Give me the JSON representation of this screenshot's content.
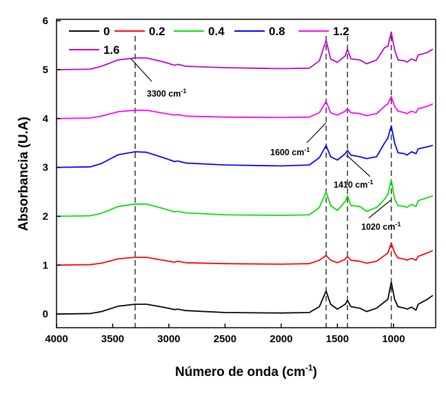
{
  "chart_data": {
    "type": "line",
    "title": "",
    "xlabel": "Número de onda (cm",
    "xlabel_sup": "-1",
    "xlabel_end": ")",
    "ylabel": "Absorbancia (U.A)",
    "xlim": [
      4000,
      625
    ],
    "ylim": [
      -0.28,
      6.03
    ],
    "x_reversed": true,
    "xticks": [
      4000,
      3500,
      3000,
      2500,
      2000,
      1500,
      1000
    ],
    "yticks": [
      0,
      1,
      2,
      3,
      4,
      5,
      6
    ],
    "grid": false,
    "legend_position": "top-left",
    "x": [
      4000,
      3700,
      3600,
      3450,
      3300,
      3200,
      3050,
      2950,
      2920,
      2850,
      2500,
      2000,
      1750,
      1660,
      1600,
      1560,
      1500,
      1430,
      1410,
      1380,
      1300,
      1240,
      1150,
      1080,
      1050,
      1020,
      990,
      960,
      900,
      880,
      840,
      800,
      780,
      700,
      650
    ],
    "series": [
      {
        "name": "0",
        "color": "#000000",
        "values": [
          0,
          0.01,
          0.05,
          0.16,
          0.2,
          0.2,
          0.14,
          0.09,
          0.1,
          0.07,
          0.03,
          0.02,
          0.03,
          0.15,
          0.47,
          0.2,
          0.1,
          0.2,
          0.28,
          0.15,
          0.12,
          0.05,
          0.12,
          0.25,
          0.3,
          0.65,
          0.3,
          0.15,
          0.12,
          0.1,
          0.14,
          0.08,
          0.2,
          0.3,
          0.38
        ]
      },
      {
        "name": "0.2",
        "color": "#ff0000",
        "values": [
          1,
          1.01,
          1.04,
          1.13,
          1.16,
          1.16,
          1.1,
          1.06,
          1.08,
          1.05,
          1.03,
          1.02,
          1.03,
          1.1,
          1.2,
          1.1,
          1.05,
          1.12,
          1.18,
          1.1,
          1.08,
          1.04,
          1.08,
          1.2,
          1.25,
          1.45,
          1.25,
          1.15,
          1.12,
          1.1,
          1.14,
          1.1,
          1.18,
          1.25,
          1.3
        ]
      },
      {
        "name": "0.4",
        "color": "#00e000",
        "values": [
          2,
          2.01,
          2.06,
          2.2,
          2.25,
          2.25,
          2.16,
          2.09,
          2.1,
          2.07,
          2.03,
          2.02,
          2.03,
          2.18,
          2.5,
          2.22,
          2.12,
          2.3,
          2.42,
          2.22,
          2.2,
          2.1,
          2.18,
          2.35,
          2.45,
          2.75,
          2.35,
          2.22,
          2.2,
          2.18,
          2.24,
          2.2,
          2.32,
          2.38,
          2.42
        ]
      },
      {
        "name": "0.8",
        "color": "#0000ff",
        "values": [
          3,
          3.01,
          3.08,
          3.26,
          3.32,
          3.31,
          3.2,
          3.12,
          3.13,
          3.09,
          3.05,
          3.03,
          3.05,
          3.2,
          3.45,
          3.22,
          3.15,
          3.28,
          3.35,
          3.25,
          3.22,
          3.18,
          3.22,
          3.5,
          3.6,
          3.85,
          3.5,
          3.3,
          3.28,
          3.25,
          3.32,
          3.28,
          3.38,
          3.42,
          3.45
        ]
      },
      {
        "name": "1.2",
        "color": "#ff00ff",
        "values": [
          4,
          4.01,
          4.05,
          4.14,
          4.17,
          4.17,
          4.11,
          4.07,
          4.08,
          4.05,
          4.03,
          4.02,
          4.03,
          4.12,
          4.35,
          4.12,
          4.07,
          4.15,
          4.2,
          4.12,
          4.1,
          4.06,
          4.1,
          4.25,
          4.3,
          4.45,
          4.25,
          4.15,
          4.12,
          4.1,
          4.15,
          4.12,
          4.2,
          4.25,
          4.3
        ]
      },
      {
        "name": "1.6",
        "color": "#c000d0",
        "values": [
          5,
          5.01,
          5.07,
          5.2,
          5.24,
          5.24,
          5.16,
          5.09,
          5.11,
          5.07,
          5.04,
          5.02,
          5.03,
          5.18,
          5.6,
          5.22,
          5.15,
          5.28,
          5.42,
          5.22,
          5.2,
          5.12,
          5.2,
          5.45,
          5.48,
          5.77,
          5.4,
          5.2,
          5.18,
          5.15,
          5.22,
          5.18,
          5.3,
          5.35,
          5.42
        ]
      }
    ],
    "reference_lines": [
      3300,
      1600,
      1410,
      1020
    ],
    "annotations": [
      {
        "text": "3300 cm",
        "sup": "-1",
        "x": 3300
      },
      {
        "text": "1600 cm",
        "sup": "-1",
        "x": 1600
      },
      {
        "text": "1410 cm",
        "sup": "-1",
        "x": 1410
      },
      {
        "text": "1020 cm",
        "sup": "-1",
        "x": 1020
      }
    ]
  }
}
